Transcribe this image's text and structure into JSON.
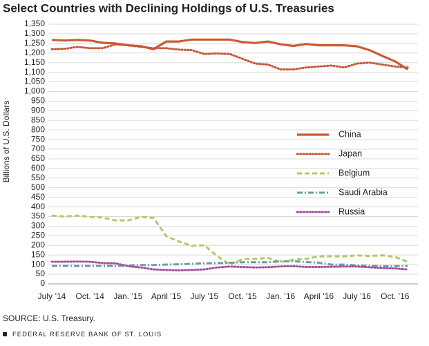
{
  "chart_data": {
    "type": "line",
    "title": "Select Countries with Declining Holdings of U.S. Treasuries",
    "y_label": "Billions of U.S. Dollars",
    "source": "SOURCE: U.S. Treasury.",
    "footer": "FEDERAL RESERVE BANK OF ST. LOUIS",
    "categories": [
      "July ’14",
      null,
      null,
      "Oct. ’14",
      null,
      null,
      "Jan. ’15",
      null,
      null,
      "April ’15",
      null,
      null,
      "July ’15",
      null,
      null,
      "Oct. ’15",
      null,
      null,
      "Jan. ’16",
      null,
      null,
      "April ’16",
      null,
      null,
      "July ’16",
      null,
      null,
      "Oct. ’16",
      null
    ],
    "series": [
      {
        "name": "China",
        "color": "#cc5a33",
        "style": "solid",
        "values": [
          1268,
          1265,
          1268,
          1265,
          1253,
          1250,
          1240,
          1236,
          1220,
          1260,
          1260,
          1270,
          1270,
          1270,
          1270,
          1257,
          1252,
          1260,
          1245,
          1237,
          1247,
          1240,
          1240,
          1240,
          1235,
          1215,
          1185,
          1157,
          1115
        ]
      },
      {
        "name": "Japan",
        "color": "#c8553a",
        "style": "dotted",
        "values": [
          1220,
          1222,
          1232,
          1225,
          1225,
          1245,
          1240,
          1232,
          1225,
          1225,
          1218,
          1215,
          1195,
          1198,
          1195,
          1170,
          1145,
          1140,
          1115,
          1115,
          1125,
          1130,
          1135,
          1125,
          1145,
          1150,
          1140,
          1130,
          1125
        ]
      },
      {
        "name": "Belgium",
        "color": "#b8c66c",
        "style": "dashed",
        "values": [
          355,
          350,
          355,
          348,
          345,
          330,
          330,
          348,
          343,
          248,
          220,
          198,
          200,
          145,
          100,
          128,
          130,
          135,
          113,
          125,
          130,
          143,
          143,
          143,
          148,
          145,
          148,
          140,
          115
        ]
      },
      {
        "name": "Saudi Arabia",
        "color": "#6a9ea0",
        "style": "dashdot",
        "values": [
          93,
          93,
          93,
          93,
          93,
          93,
          95,
          98,
          98,
          100,
          102,
          104,
          107,
          108,
          110,
          112,
          112,
          112,
          117,
          117,
          113,
          110,
          100,
          100,
          96,
          93,
          92,
          92,
          93
        ]
      },
      {
        "name": "Russia",
        "color": "#a050a0",
        "style": "dotted",
        "values": [
          115,
          115,
          116,
          115,
          108,
          107,
          92,
          85,
          75,
          72,
          70,
          72,
          75,
          85,
          90,
          88,
          85,
          87,
          91,
          92,
          88,
          88,
          89,
          90,
          90,
          86,
          82,
          80,
          75
        ]
      }
    ],
    "ylim": [
      0,
      1350
    ],
    "yticks": [
      0,
      50,
      100,
      150,
      200,
      250,
      300,
      350,
      400,
      450,
      500,
      550,
      600,
      650,
      700,
      750,
      800,
      850,
      900,
      950,
      {
        "value": 1000,
        "label": "1,000"
      },
      {
        "value": 1050,
        "label": "1,050"
      },
      {
        "value": 1100,
        "label": "1,100"
      },
      {
        "value": 1150,
        "label": "1,150"
      },
      {
        "value": 1200,
        "label": "1,200"
      },
      {
        "value": 1250,
        "label": "1,250"
      },
      {
        "value": 1300,
        "label": "1,300"
      },
      {
        "value": 1350,
        "label": "1,350"
      }
    ],
    "grid": true,
    "legend": "center right"
  }
}
